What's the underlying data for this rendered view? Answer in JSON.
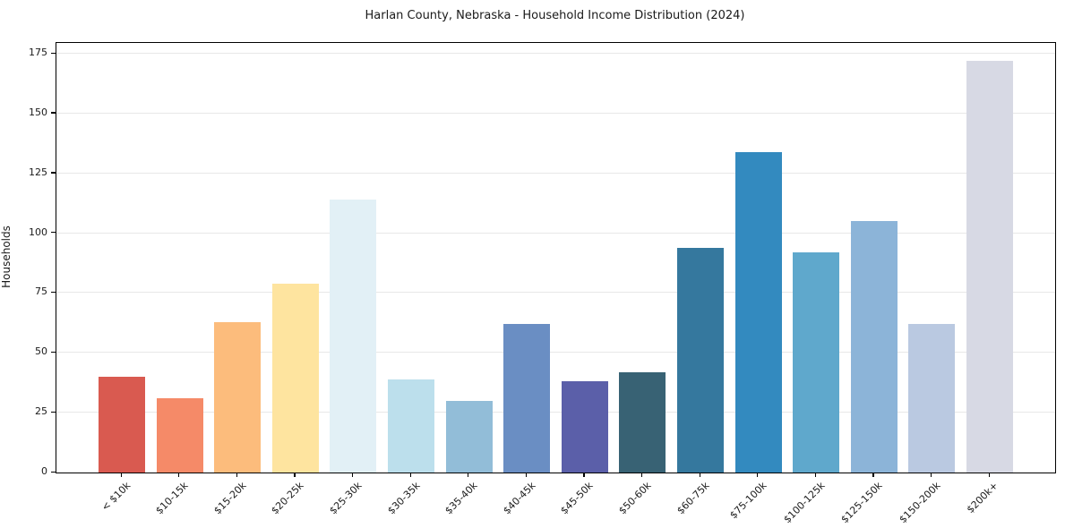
{
  "chart_data": {
    "type": "bar",
    "title": "Harlan County, Nebraska - Household Income Distribution (2024)",
    "xlabel": "",
    "ylabel": "Households",
    "ylim": [
      0,
      180
    ],
    "y_ticks": [
      0,
      25,
      50,
      75,
      100,
      125,
      150,
      175
    ],
    "grid": "horizontal",
    "legend": "none",
    "categories": [
      "< $10k",
      "$10-15k",
      "$15-20k",
      "$20-25k",
      "$25-30k",
      "$30-35k",
      "$35-40k",
      "$40-45k",
      "$45-50k",
      "$50-60k",
      "$60-75k",
      "$75-100k",
      "$100-125k",
      "$125-150k",
      "$150-200k",
      "$200k+"
    ],
    "values": [
      40,
      31,
      63,
      79,
      114,
      39,
      30,
      62,
      38,
      42,
      94,
      134,
      92,
      105,
      62,
      172
    ],
    "bar_colors": [
      "#d95a50",
      "#f58a68",
      "#fcbc7c",
      "#fee49f",
      "#e2f0f6",
      "#bcdfec",
      "#92bdd8",
      "#6a8ec3",
      "#5b5fa9",
      "#386274",
      "#35789e",
      "#338abf",
      "#5fa8cc",
      "#8cb4d8",
      "#bac9e1",
      "#d7d9e4"
    ],
    "colors": {
      "axis_spine": "#000000",
      "grid_line": "#e8e8e8",
      "text": "#1a1a1a",
      "background": "#ffffff"
    }
  }
}
